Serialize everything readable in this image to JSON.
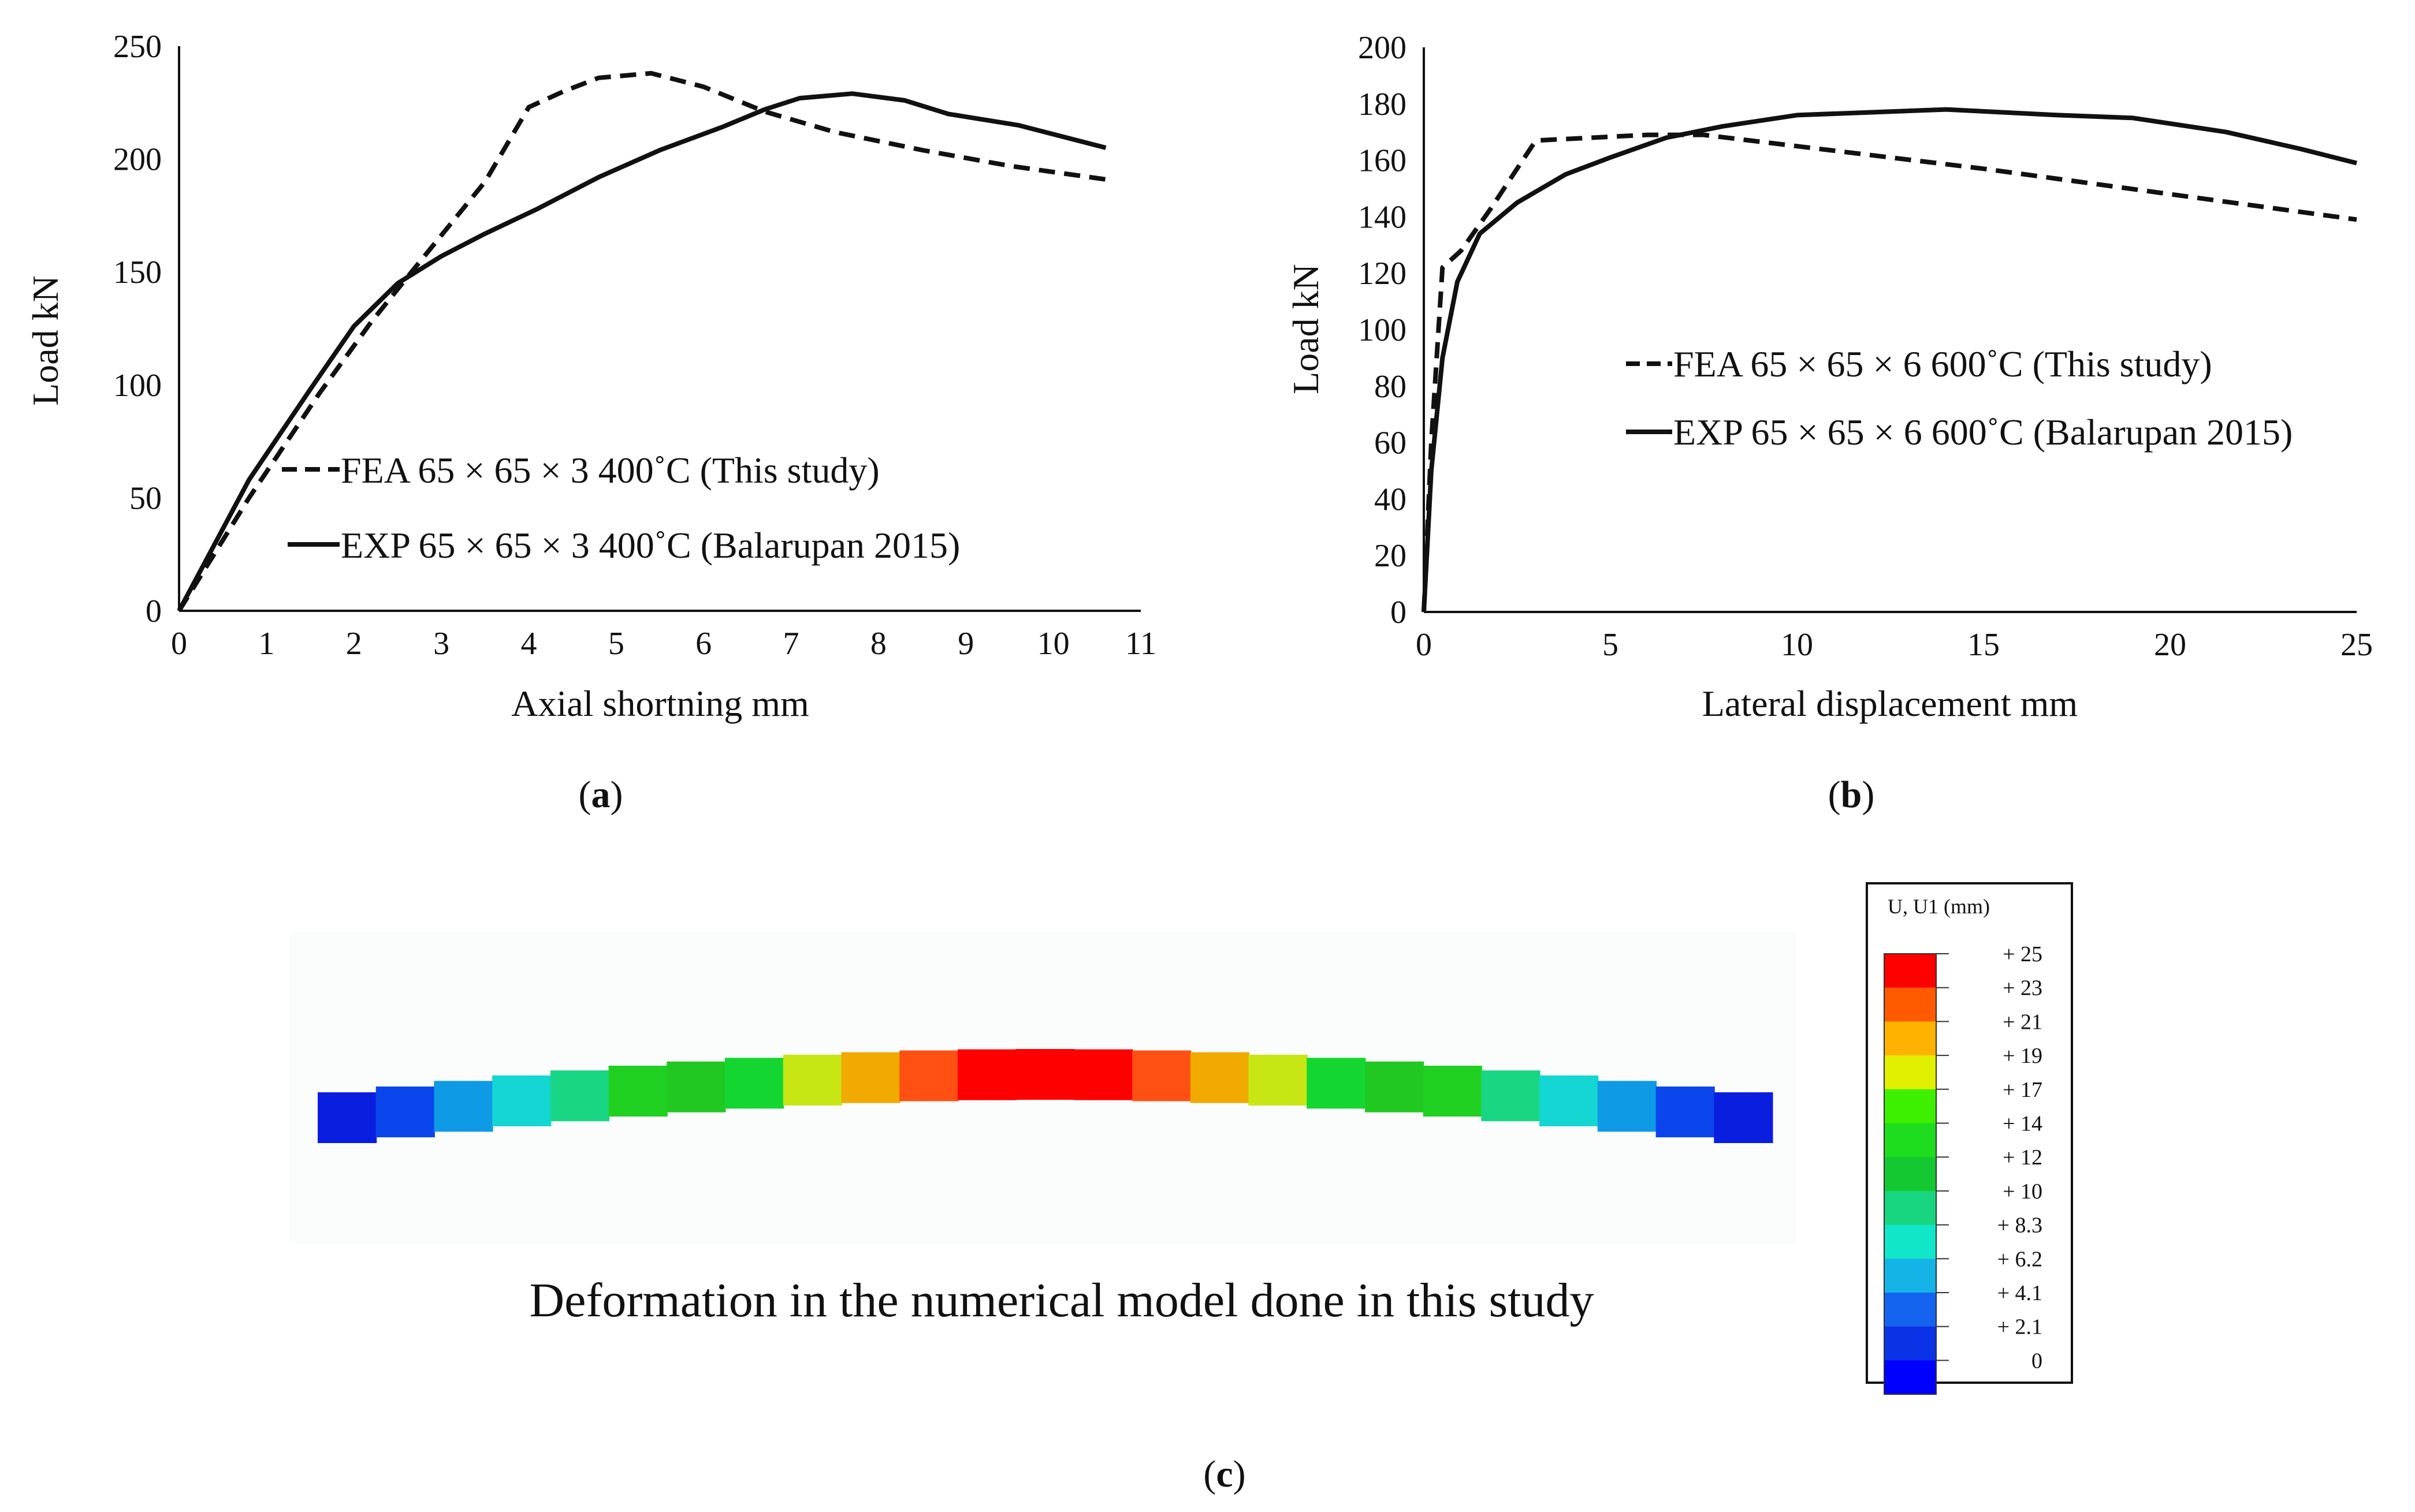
{
  "chart_data": [
    {
      "id": "a",
      "type": "line",
      "panel_label": "a",
      "xlabel": "Axial shortning mm",
      "ylabel": "Load kN",
      "xlim": [
        0,
        11
      ],
      "ylim": [
        0,
        250
      ],
      "xticks": [
        0,
        1,
        2,
        3,
        4,
        5,
        6,
        7,
        8,
        9,
        10,
        11
      ],
      "yticks": [
        0,
        50,
        100,
        150,
        200,
        250
      ],
      "grid": false,
      "legend_position": "lower-middle",
      "series": [
        {
          "name": "FEA 65 × 65 × 3 400˚C (This study)",
          "style": "dashed",
          "x": [
            0,
            0.8,
            1.6,
            2.2,
            2.7,
            3.5,
            4.0,
            4.4,
            4.8,
            5.4,
            6.0,
            6.7,
            7.5,
            8.5,
            9.5,
            10.6
          ],
          "y": [
            0,
            50,
            96,
            128,
            152,
            190,
            223,
            230,
            236,
            238,
            232,
            221,
            212,
            204,
            197,
            191
          ]
        },
        {
          "name": "EXP 65 × 65 × 3 400˚C (Balarupan 2015)",
          "style": "solid",
          "x": [
            0,
            0.8,
            1.5,
            2.0,
            2.5,
            3.0,
            3.5,
            4.1,
            4.8,
            5.5,
            6.2,
            6.7,
            7.1,
            7.7,
            8.3,
            8.8,
            9.6,
            10.6
          ],
          "y": [
            0,
            58,
            98,
            126,
            145,
            157,
            167,
            178,
            192,
            204,
            214,
            222,
            227,
            229,
            226,
            220,
            215,
            205
          ]
        }
      ]
    },
    {
      "id": "b",
      "type": "line",
      "panel_label": "b",
      "xlabel": "Lateral displacement mm",
      "ylabel": "Load kN",
      "xlim": [
        0,
        25
      ],
      "ylim": [
        0,
        200
      ],
      "xticks": [
        0,
        5,
        10,
        15,
        20,
        25
      ],
      "yticks": [
        0,
        20,
        40,
        60,
        80,
        100,
        120,
        140,
        160,
        180,
        200
      ],
      "grid": false,
      "legend_position": "middle-right",
      "series": [
        {
          "name": "FEA 65 × 65 × 6 600˚C (This study)",
          "style": "dashed",
          "x": [
            0,
            0.2,
            0.5,
            1.0,
            1.8,
            3.0,
            4.5,
            6.0,
            7.5,
            10,
            15,
            20,
            25
          ],
          "y": [
            0,
            60,
            122,
            128,
            143,
            167,
            168,
            169,
            169,
            165,
            157,
            148,
            139
          ]
        },
        {
          "name": "EXP 65 × 65 × 6 600˚C (Balarupan 2015)",
          "style": "solid",
          "x": [
            0,
            0.2,
            0.5,
            0.9,
            1.5,
            2.5,
            3.8,
            5.0,
            6.5,
            8.0,
            10,
            12,
            14,
            17,
            19,
            21.5,
            23.5,
            25
          ],
          "y": [
            0,
            50,
            90,
            117,
            134,
            145,
            155,
            161,
            168,
            172,
            176,
            177,
            178,
            176,
            175,
            170,
            164,
            159
          ]
        }
      ]
    }
  ],
  "panel_c": {
    "label": "c",
    "caption": "Deformation in the numerical model done in this study",
    "colorbar": {
      "title": "U, U1  (mm)",
      "labels": [
        "+ 25",
        "+ 23",
        "+ 21",
        "+ 19",
        "+ 17",
        "+ 14",
        "+ 12",
        "+ 10",
        "+ 8.3",
        "+ 6.2",
        "+ 4.1",
        "+ 2.1",
        "0"
      ],
      "colors": [
        "#ff0000",
        "#ff5a00",
        "#ffb300",
        "#e2f000",
        "#3cf000",
        "#1edc1e",
        "#14c832",
        "#18d680",
        "#10e6c8",
        "#14b4e6",
        "#1464f0",
        "#0a32e6",
        "#0000ff"
      ]
    },
    "beam_colors": [
      "#0a1ee0",
      "#0a46ec",
      "#0f9ae6",
      "#14d6d2",
      "#18d684",
      "#20d020",
      "#22c822",
      "#14d630",
      "#c8e614",
      "#f0aa00",
      "#ff5014",
      "#ff0000",
      "#ff0000",
      "#ff0000",
      "#ff5014",
      "#f0aa00",
      "#c8e614",
      "#14d630",
      "#22c822",
      "#20d020",
      "#18d684",
      "#14d6d2",
      "#0f9ae6",
      "#0a46ec",
      "#0a1ee0"
    ]
  }
}
